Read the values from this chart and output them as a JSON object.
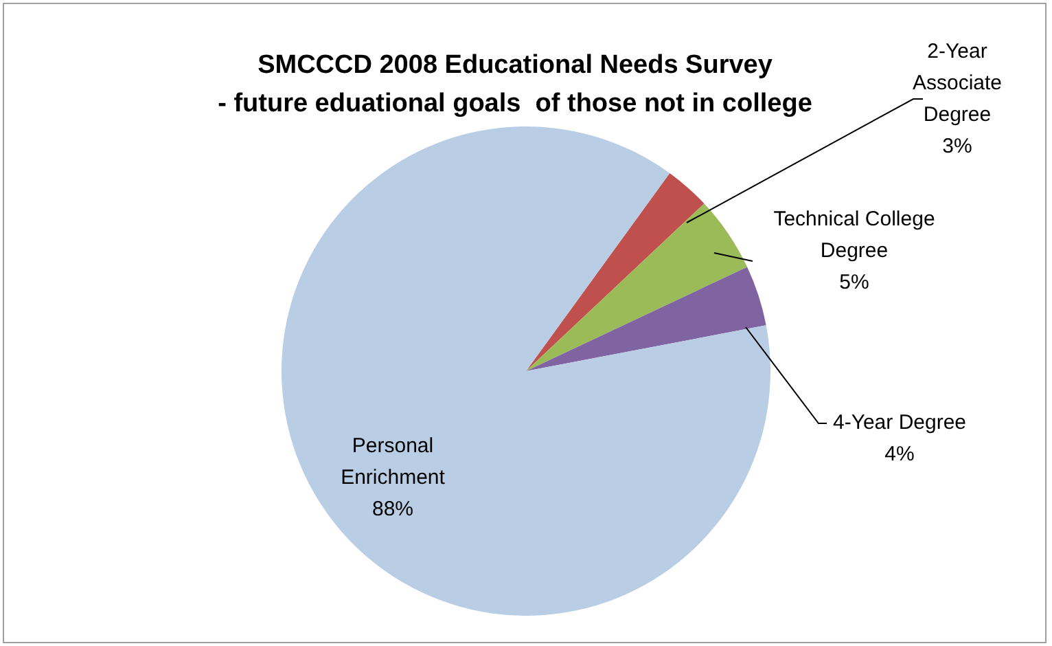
{
  "chart_data": {
    "type": "pie",
    "title": "SMCCCD 2008 Educational Needs Survey\n- future eduational goals  of those not in college",
    "categories": [
      "2-Year Associate Degree",
      "Technical College Degree",
      "4-Year Degree",
      "Personal Enrichment"
    ],
    "values": [
      3,
      5,
      4,
      88
    ],
    "value_labels": [
      "3%",
      "5%",
      "4%",
      "88%"
    ],
    "colors": [
      "#c0504d",
      "#9bbb59",
      "#8064a2",
      "#b9cde5"
    ],
    "legend": false
  }
}
